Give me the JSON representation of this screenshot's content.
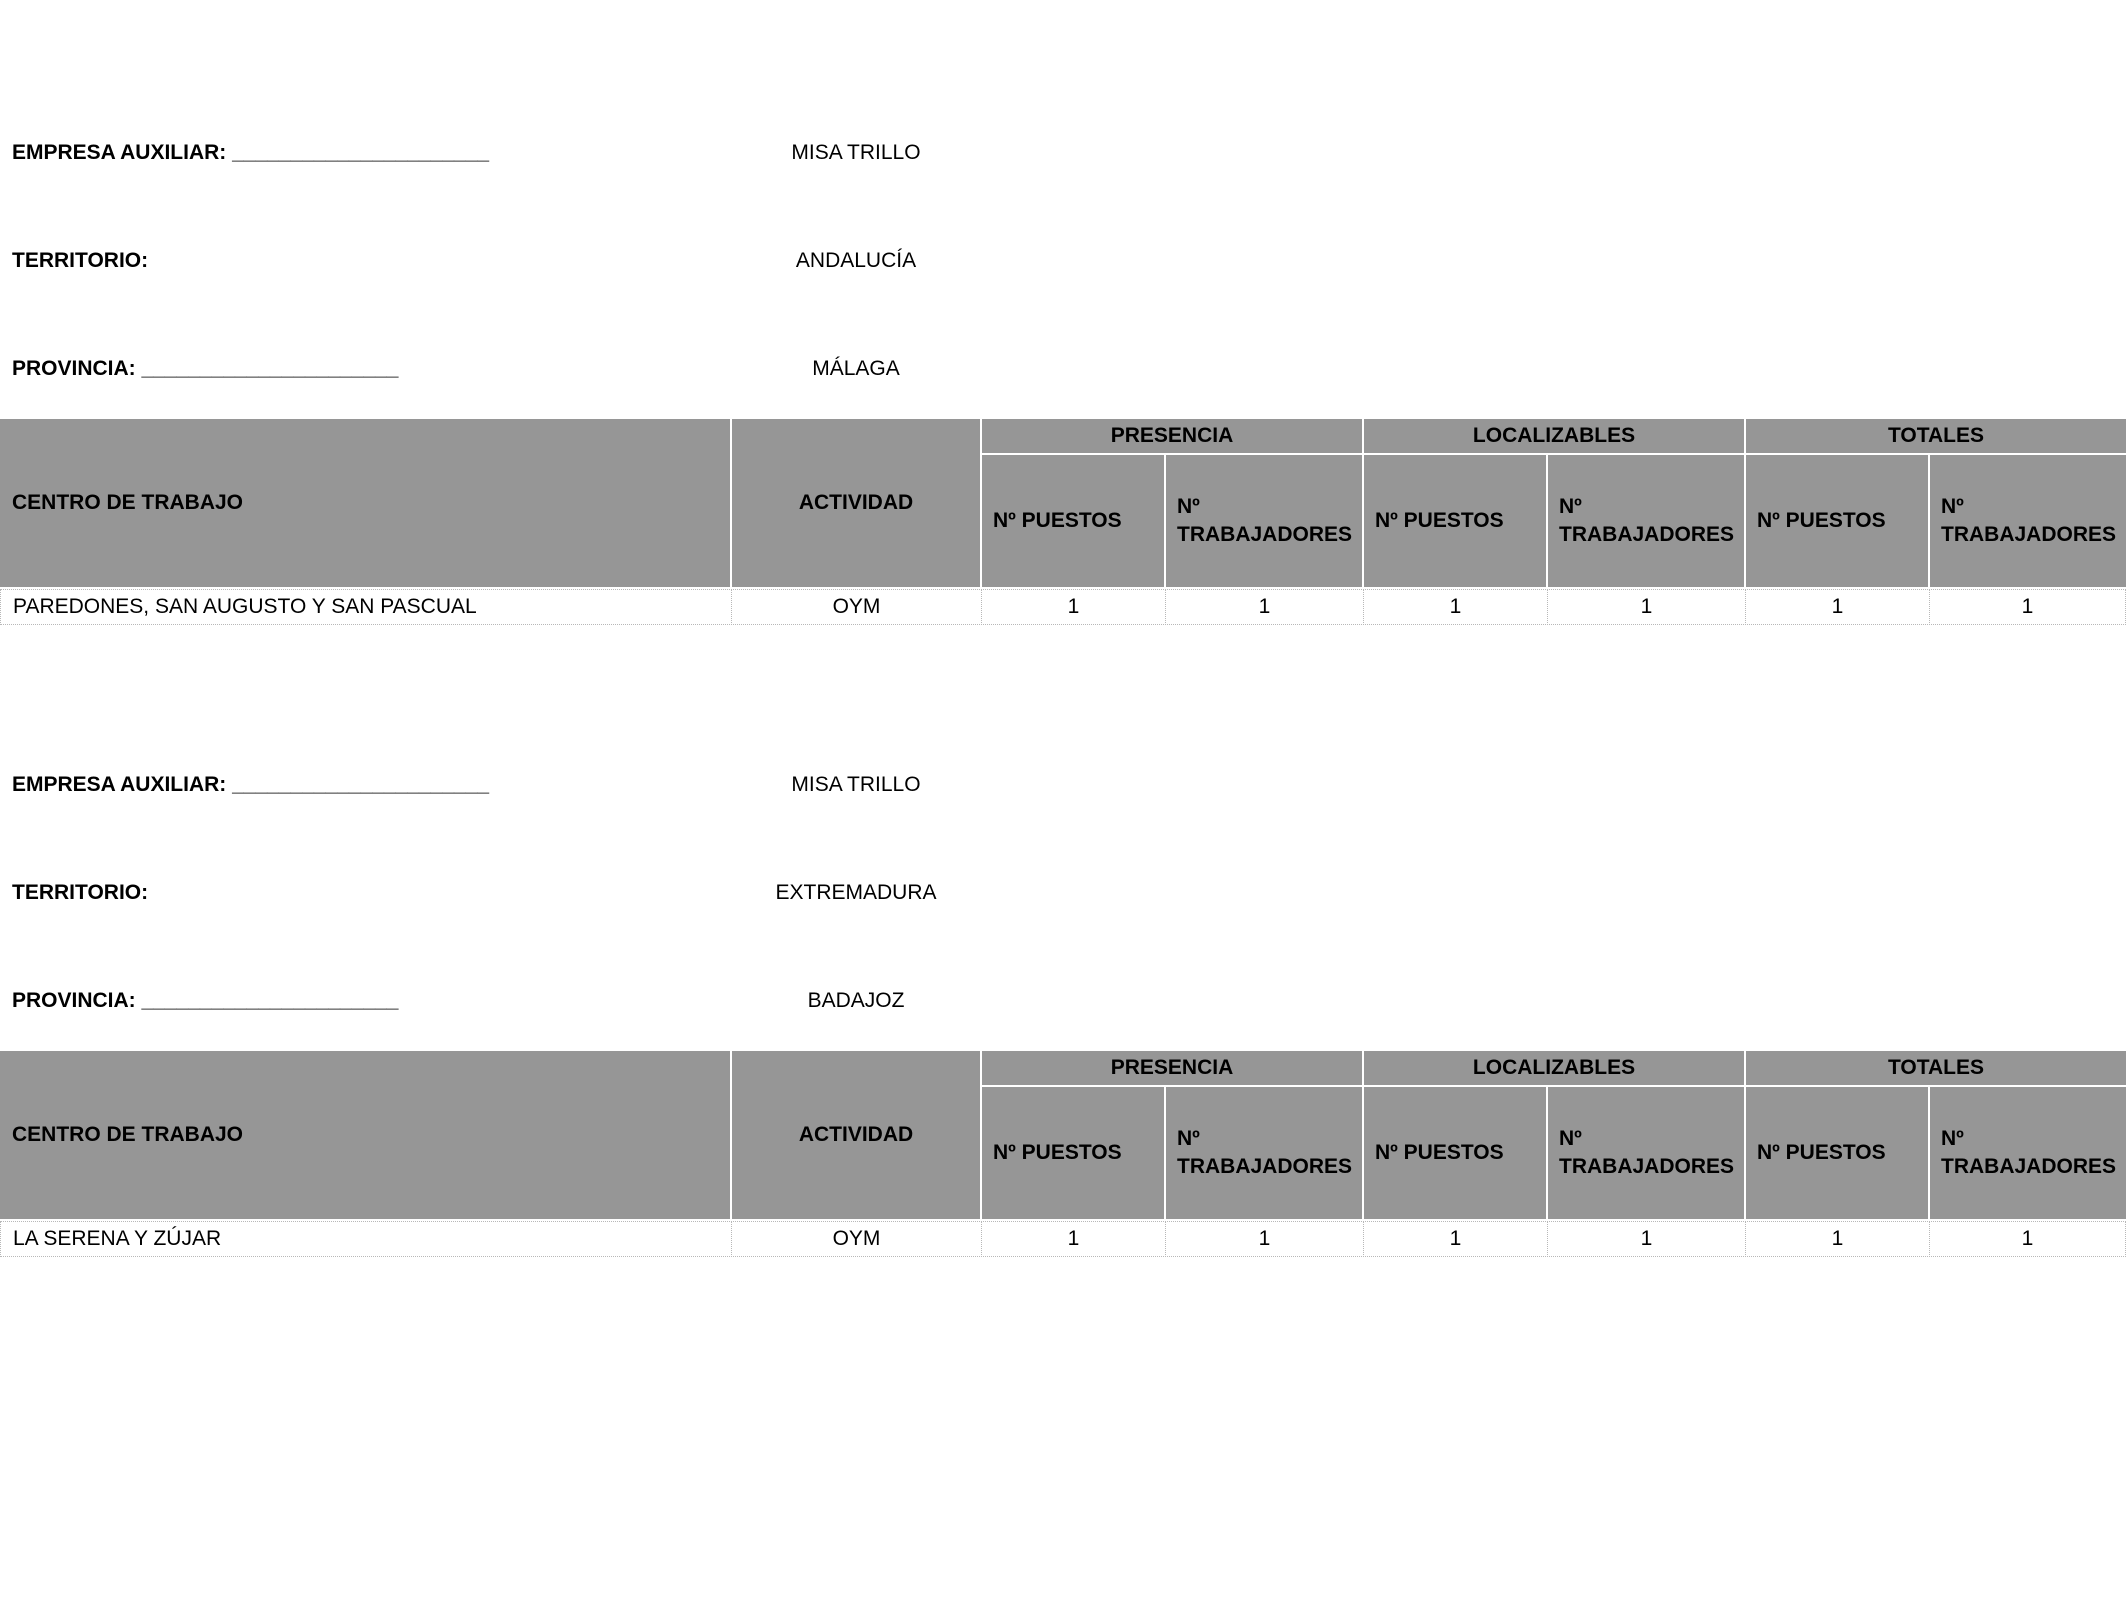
{
  "labels": {
    "empresa": "EMPRESA AUXILIAR: ______________________",
    "territorio": "TERRITORIO:",
    "provincia": "PROVINCIA: ______________________"
  },
  "table_headers": {
    "centro": "CENTRO DE TRABAJO",
    "actividad": "ACTIVIDAD",
    "presencia": "PRESENCIA",
    "localizables": "LOCALIZABLES",
    "totales": "TOTALES",
    "puestos": "Nº PUESTOS",
    "trabajadores": "Nº TRABAJADORES"
  },
  "sections": [
    {
      "empresa": "MISA TRILLO",
      "territorio": "ANDALUCÍA",
      "provincia": "MÁLAGA",
      "rows": [
        {
          "centro": "PAREDONES, SAN AUGUSTO Y SAN PASCUAL",
          "actividad": "OYM",
          "presencia_puestos": "1",
          "presencia_trabajadores": "1",
          "localizables_puestos": "1",
          "localizables_trabajadores": "1",
          "totales_puestos": "1",
          "totales_trabajadores": "1"
        }
      ]
    },
    {
      "empresa": "MISA TRILLO",
      "territorio": "EXTREMADURA",
      "provincia": "BADAJOZ",
      "rows": [
        {
          "centro": "LA SERENA Y ZÚJAR",
          "actividad": "OYM",
          "presencia_puestos": "1",
          "presencia_trabajadores": "1",
          "localizables_puestos": "1",
          "localizables_trabajadores": "1",
          "totales_puestos": "1",
          "totales_trabajadores": "1"
        }
      ]
    }
  ]
}
